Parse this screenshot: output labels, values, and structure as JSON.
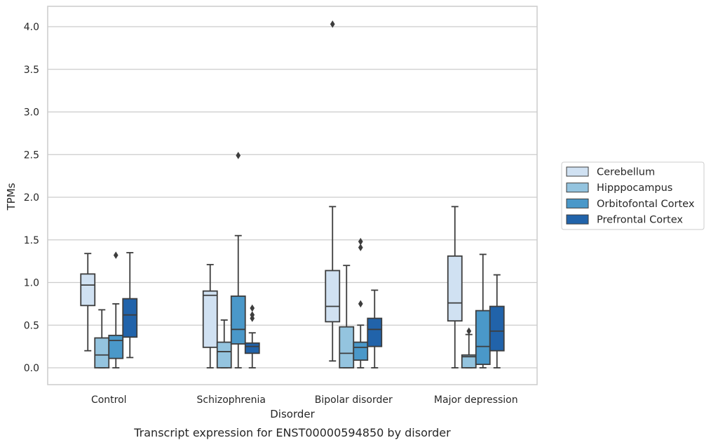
{
  "chart_data": {
    "type": "box",
    "title": "",
    "caption": "Transcript expression for ENST00000594850 by disorder",
    "xlabel": "Disorder",
    "ylabel": "TPMs",
    "ylim": [
      -0.2,
      4.25
    ],
    "yticks": [
      "0.0",
      "0.5",
      "1.0",
      "1.5",
      "2.0",
      "2.5",
      "3.0",
      "3.5",
      "4.0"
    ],
    "grid": true,
    "legend_placement": "right",
    "categories": [
      "Control",
      "Schizophrenia",
      "Bipolar disorder",
      "Major depression"
    ],
    "series": [
      {
        "name": "Cerebellum",
        "color": "#d0e1f2",
        "boxes": [
          {
            "whislo": 0.2,
            "q1": 0.73,
            "med": 0.97,
            "q3": 1.1,
            "whishi": 1.34,
            "fliers": []
          },
          {
            "whislo": 0.0,
            "q1": 0.24,
            "med": 0.85,
            "q3": 0.9,
            "whishi": 1.21,
            "fliers": []
          },
          {
            "whislo": 0.08,
            "q1": 0.54,
            "med": 0.72,
            "q3": 1.14,
            "whishi": 1.89,
            "fliers": [
              4.03
            ]
          },
          {
            "whislo": 0.0,
            "q1": 0.55,
            "med": 0.76,
            "q3": 1.31,
            "whishi": 1.89,
            "fliers": []
          }
        ]
      },
      {
        "name": "Hipppocampus",
        "color": "#94c4df",
        "boxes": [
          {
            "whislo": 0.0,
            "q1": 0.0,
            "med": 0.15,
            "q3": 0.35,
            "whishi": 0.68,
            "fliers": []
          },
          {
            "whislo": 0.0,
            "q1": 0.0,
            "med": 0.19,
            "q3": 0.3,
            "whishi": 0.56,
            "fliers": []
          },
          {
            "whislo": 0.0,
            "q1": 0.0,
            "med": 0.17,
            "q3": 0.48,
            "whishi": 1.2,
            "fliers": []
          },
          {
            "whislo": 0.0,
            "q1": 0.0,
            "med": 0.13,
            "q3": 0.15,
            "whishi": 0.39,
            "fliers": [
              0.43
            ]
          }
        ]
      },
      {
        "name": "Orbitofontal Cortex",
        "color": "#4a98c9",
        "boxes": [
          {
            "whislo": 0.0,
            "q1": 0.11,
            "med": 0.32,
            "q3": 0.38,
            "whishi": 0.75,
            "fliers": [
              1.32
            ]
          },
          {
            "whislo": 0.0,
            "q1": 0.28,
            "med": 0.45,
            "q3": 0.84,
            "whishi": 1.55,
            "fliers": [
              2.49
            ]
          },
          {
            "whislo": 0.0,
            "q1": 0.09,
            "med": 0.24,
            "q3": 0.3,
            "whishi": 0.5,
            "fliers": [
              0.75,
              1.41,
              1.48
            ]
          },
          {
            "whislo": 0.0,
            "q1": 0.04,
            "med": 0.25,
            "q3": 0.67,
            "whishi": 1.33,
            "fliers": []
          }
        ]
      },
      {
        "name": "Prefrontal Cortex",
        "color": "#2163aa",
        "boxes": [
          {
            "whislo": 0.12,
            "q1": 0.36,
            "med": 0.62,
            "q3": 0.81,
            "whishi": 1.35,
            "fliers": []
          },
          {
            "whislo": 0.0,
            "q1": 0.17,
            "med": 0.25,
            "q3": 0.29,
            "whishi": 0.41,
            "fliers": [
              0.58,
              0.62,
              0.7
            ]
          },
          {
            "whislo": 0.0,
            "q1": 0.25,
            "med": 0.45,
            "q3": 0.58,
            "whishi": 0.91,
            "fliers": []
          },
          {
            "whislo": 0.0,
            "q1": 0.2,
            "med": 0.43,
            "q3": 0.72,
            "whishi": 1.09,
            "fliers": []
          }
        ]
      }
    ]
  }
}
